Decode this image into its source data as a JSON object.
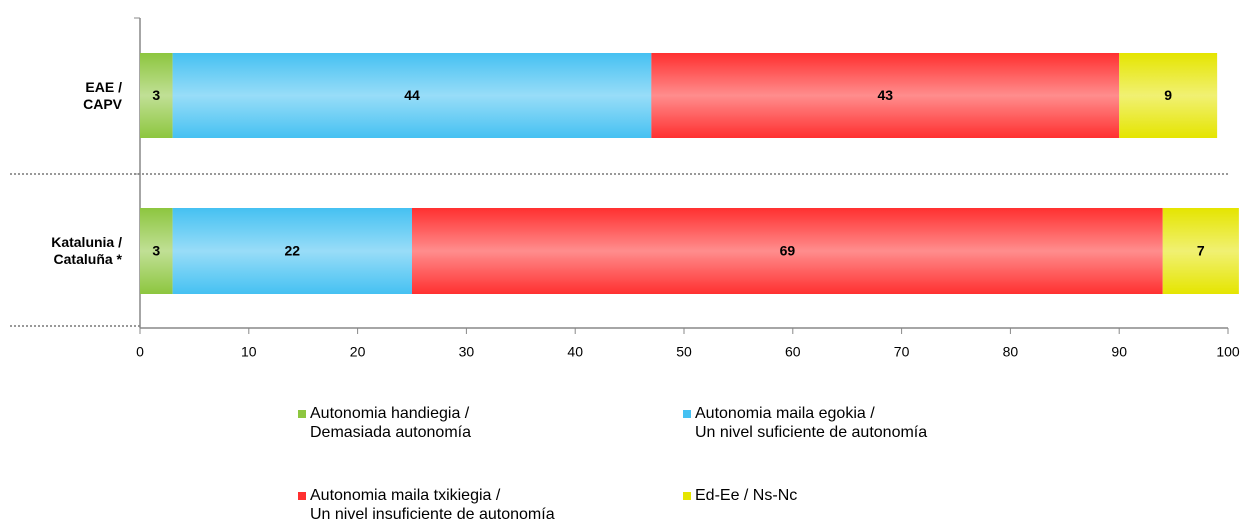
{
  "chart_data": {
    "type": "stacked_barh",
    "categories": [
      "EAE /\nCAPV",
      "Katalunia /\nCataluña *"
    ],
    "series": [
      {
        "name": "Autonomia handiegia /\nDemasiada autonomía",
        "color": "#8dc63f",
        "values": [
          3,
          3
        ]
      },
      {
        "name": "Autonomia maila egokia /\nUn nivel suficiente de autonomía",
        "color": "#45c1f2",
        "values": [
          44,
          22
        ]
      },
      {
        "name": "Autonomia maila txikiegia /\nUn nivel insuficiente de autonomía",
        "color": "#ff3030",
        "values": [
          43,
          69
        ]
      },
      {
        "name": "Ed-Ee / Ns-Nc",
        "color": "#e5e500",
        "values": [
          9,
          7
        ]
      }
    ],
    "xlim": [
      0,
      100
    ],
    "xticks": [
      0,
      10,
      20,
      30,
      40,
      50,
      60,
      70,
      80,
      90,
      100
    ]
  }
}
